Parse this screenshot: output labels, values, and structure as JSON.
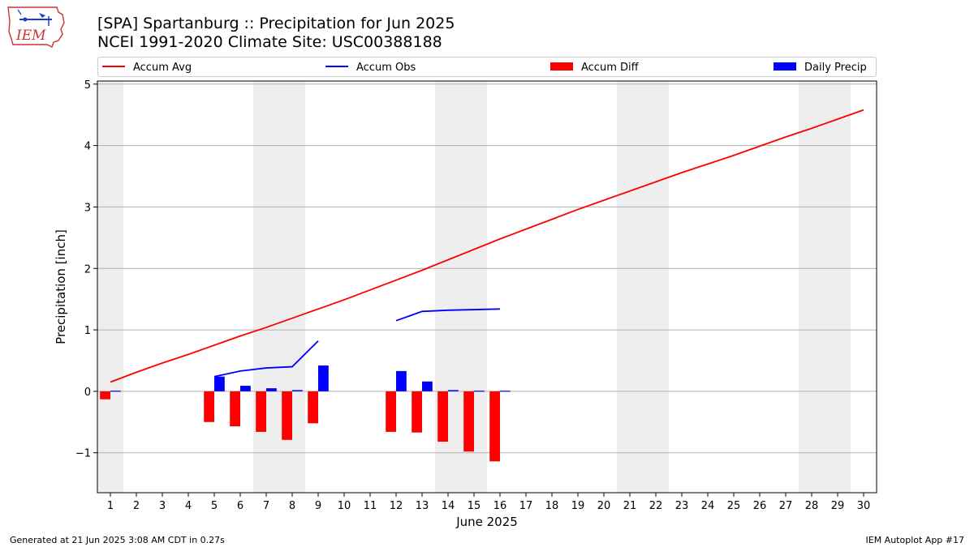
{
  "header": {
    "title_line1": "[SPA] Spartanburg :: Precipitation for Jun 2025",
    "title_line2": "NCEI 1991-2020 Climate Site: USC00388188",
    "logo_text": "IEM"
  },
  "footer": {
    "generated": "Generated at 21 Jun 2025 3:08 AM CDT in 0.27s",
    "app": "IEM Autoplot App #17"
  },
  "colors": {
    "avg": "#ff0000",
    "obs": "#0000ff",
    "diff": "#ff0000",
    "daily": "#0000ff",
    "weekend_band": "#eeeeee",
    "grid": "#b0b0b0"
  },
  "chart_data": {
    "type": "bar",
    "xlabel": "June 2025",
    "ylabel": "Precipitation [inch]",
    "xlim": [
      0.5,
      30.5
    ],
    "ylim": [
      -1.65,
      5.05
    ],
    "yticks": [
      -1,
      0,
      1,
      2,
      3,
      4,
      5
    ],
    "xticks": [
      1,
      2,
      3,
      4,
      5,
      6,
      7,
      8,
      9,
      10,
      11,
      12,
      13,
      14,
      15,
      16,
      17,
      18,
      19,
      20,
      21,
      22,
      23,
      24,
      25,
      26,
      27,
      28,
      29,
      30
    ],
    "grid": "horizontal",
    "legend_placement": "top",
    "weekend_bands": [
      [
        0.5,
        1.5
      ],
      [
        6.5,
        8.5
      ],
      [
        13.5,
        15.5
      ],
      [
        20.5,
        22.5
      ],
      [
        27.5,
        29.5
      ]
    ],
    "series": [
      {
        "name": "Accum Avg",
        "kind": "line",
        "x": [
          1,
          2,
          3,
          4,
          5,
          6,
          7,
          8,
          9,
          10,
          11,
          12,
          13,
          14,
          15,
          16,
          17,
          18,
          19,
          20,
          21,
          22,
          23,
          24,
          25,
          26,
          27,
          28,
          29,
          30
        ],
        "values": [
          0.15,
          0.31,
          0.46,
          0.6,
          0.75,
          0.9,
          1.04,
          1.19,
          1.34,
          1.49,
          1.65,
          1.81,
          1.97,
          2.14,
          2.31,
          2.48,
          2.64,
          2.8,
          2.96,
          3.11,
          3.26,
          3.41,
          3.56,
          3.7,
          3.84,
          3.99,
          4.14,
          4.28,
          4.43,
          4.58
        ]
      },
      {
        "name": "Accum Obs",
        "kind": "line",
        "segments": [
          {
            "x": [
              5,
              6,
              7,
              8,
              9
            ],
            "values": [
              0.24,
              0.33,
              0.38,
              0.4,
              0.82
            ]
          },
          {
            "x": [
              12,
              13,
              14,
              15,
              16
            ],
            "values": [
              1.15,
              1.3,
              1.32,
              1.33,
              1.34
            ]
          }
        ]
      },
      {
        "name": "Accum Diff",
        "kind": "bar",
        "x": [
          1,
          5,
          6,
          7,
          8,
          9,
          12,
          13,
          14,
          15,
          16
        ],
        "values": [
          -0.13,
          -0.5,
          -0.57,
          -0.66,
          -0.79,
          -0.52,
          -0.66,
          -0.67,
          -0.82,
          -0.98,
          -1.14
        ]
      },
      {
        "name": "Daily Precip",
        "kind": "bar",
        "x": [
          1,
          5,
          6,
          7,
          8,
          9,
          12,
          13,
          14,
          15,
          16
        ],
        "values": [
          0.01,
          0.24,
          0.09,
          0.05,
          0.02,
          0.42,
          0.33,
          0.16,
          0.02,
          0.01,
          0.01
        ]
      }
    ]
  }
}
